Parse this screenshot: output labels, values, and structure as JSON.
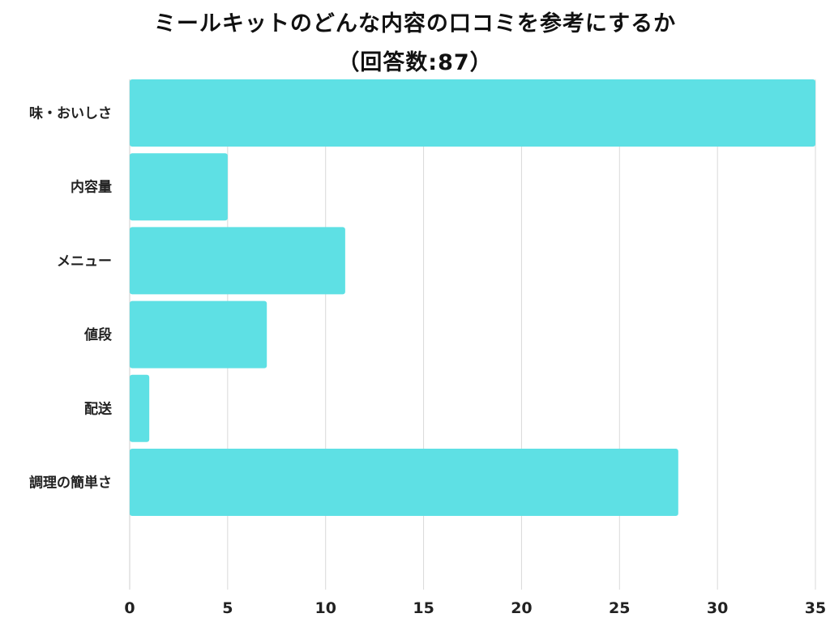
{
  "title_line1": "ミールキットのどんな内容の口コミを参考にするか",
  "title_line2": "（回答数:87）",
  "bar_color": "#5ee0e4",
  "grid_color": "#d9d9d9",
  "chart_data": {
    "type": "bar",
    "orientation": "horizontal",
    "title": "ミールキットのどんな内容の口コミを参考にするか（回答数:87）",
    "categories": [
      "味・おいしさ",
      "内容量",
      "メニュー",
      "値段",
      "配送",
      "調理の簡単さ"
    ],
    "values": [
      35,
      5,
      11,
      7,
      1,
      28
    ],
    "xlim": [
      0,
      35
    ],
    "xticks": [
      0,
      5,
      10,
      15,
      20,
      25,
      30,
      35
    ],
    "grid": true,
    "xlabel": "",
    "ylabel": ""
  }
}
